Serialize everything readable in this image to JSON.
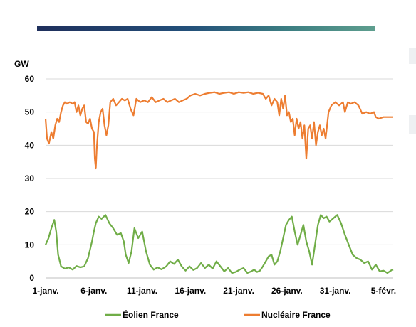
{
  "colors": {
    "eolien": "#70ad47",
    "nucleaire": "#ed7d31",
    "grid": "#d9d9d9",
    "accent_bar": "#23507a"
  },
  "chart_data": {
    "type": "line",
    "title": "",
    "xlabel": "",
    "ylabel": "GW",
    "xlim": [
      0,
      36
    ],
    "ylim": [
      0,
      60
    ],
    "yticks": [
      0,
      10,
      20,
      30,
      40,
      50,
      60
    ],
    "ytick_labels": [
      "0",
      "10",
      "20",
      "30",
      "40",
      "50",
      "60"
    ],
    "xticks": [
      0,
      5,
      10,
      15,
      20,
      25,
      30,
      35
    ],
    "xtick_labels": [
      "1-janv.",
      "6-janv.",
      "11-janv.",
      "16-janv.",
      "21-janv.",
      "26-janv.",
      "31-janv.",
      "5-févr."
    ],
    "grid": "horizontal",
    "legend_position": "bottom",
    "series": [
      {
        "name": "Éolien France",
        "color": "#70ad47",
        "x": [
          0,
          0.3,
          0.6,
          0.9,
          1.1,
          1.3,
          1.6,
          2.0,
          2.4,
          2.8,
          3.2,
          3.6,
          4.0,
          4.4,
          4.8,
          5.0,
          5.2,
          5.5,
          5.8,
          6.2,
          6.6,
          7.0,
          7.4,
          7.8,
          8.1,
          8.3,
          8.6,
          8.9,
          9.2,
          9.6,
          10.0,
          10.4,
          10.8,
          11.2,
          11.6,
          12.0,
          12.5,
          12.9,
          13.3,
          13.7,
          14.1,
          14.5,
          14.9,
          15.3,
          15.7,
          16.1,
          16.5,
          16.9,
          17.3,
          17.7,
          18.1,
          18.5,
          18.9,
          19.3,
          19.7,
          20.1,
          20.5,
          20.9,
          21.3,
          21.6,
          21.9,
          22.2,
          22.5,
          22.8,
          23.1,
          23.4,
          23.7,
          24.0,
          24.3,
          24.6,
          24.9,
          25.2,
          25.5,
          25.8,
          26.1,
          26.4,
          26.7,
          27.0,
          27.3,
          27.6,
          27.9,
          28.2,
          28.5,
          28.8,
          29.1,
          29.4,
          29.8,
          30.2,
          30.6,
          31.0,
          31.4,
          31.8,
          32.2,
          32.6,
          33.0,
          33.4,
          33.8,
          34.2,
          34.6,
          35.0,
          35.4,
          35.8,
          36.0
        ],
        "y": [
          10,
          12,
          15,
          17.5,
          14,
          7,
          3.5,
          2.8,
          3.2,
          2.5,
          3.6,
          3.2,
          3.5,
          6,
          11,
          14,
          16.5,
          18.5,
          17.8,
          19,
          16.5,
          15,
          13,
          13.5,
          11,
          7,
          4.5,
          8,
          15,
          12,
          14,
          8,
          4,
          2.5,
          3.2,
          2.6,
          3.5,
          5,
          4.2,
          5.5,
          3.5,
          2.2,
          3.5,
          2.4,
          3,
          4.5,
          3,
          4,
          2.8,
          5,
          3.5,
          2,
          3,
          1.5,
          1.8,
          2.5,
          3,
          1.5,
          2,
          2.5,
          1.8,
          2.2,
          3.5,
          5,
          6.5,
          7,
          4,
          5,
          8,
          12,
          16,
          17.5,
          18.5,
          14,
          10,
          13,
          16,
          11,
          8,
          4,
          10,
          16,
          19,
          18,
          18.5,
          17,
          18,
          19,
          16.5,
          13,
          10,
          7,
          6,
          5.5,
          4.5,
          5,
          2.5,
          4,
          2,
          2.2,
          1.5,
          2.3,
          2.5
        ]
      },
      {
        "name": "Nucléaire France",
        "color": "#ed7d31",
        "x": [
          0,
          0.15,
          0.35,
          0.6,
          0.8,
          1.0,
          1.2,
          1.4,
          1.6,
          1.8,
          2.0,
          2.2,
          2.5,
          2.8,
          3.0,
          3.2,
          3.4,
          3.6,
          3.8,
          4.0,
          4.2,
          4.4,
          4.6,
          4.8,
          5.0,
          5.1,
          5.2,
          5.3,
          5.5,
          5.7,
          5.9,
          6.1,
          6.3,
          6.5,
          6.7,
          7.0,
          7.3,
          7.6,
          7.9,
          8.2,
          8.5,
          8.8,
          9.1,
          9.4,
          9.8,
          10.2,
          10.6,
          11.0,
          11.4,
          11.8,
          12.2,
          12.6,
          13.0,
          13.4,
          13.8,
          14.2,
          14.6,
          15.0,
          15.5,
          16.0,
          16.5,
          17.0,
          17.5,
          18.0,
          18.5,
          19.0,
          19.5,
          20.0,
          20.5,
          21.0,
          21.5,
          22.0,
          22.5,
          22.8,
          23.1,
          23.4,
          23.7,
          24.0,
          24.2,
          24.4,
          24.6,
          24.8,
          25.0,
          25.2,
          25.4,
          25.6,
          25.8,
          26.0,
          26.2,
          26.4,
          26.6,
          26.8,
          27.0,
          27.2,
          27.4,
          27.6,
          27.8,
          28.0,
          28.2,
          28.4,
          28.6,
          28.8,
          29.0,
          29.3,
          29.6,
          30.0,
          30.4,
          30.8,
          31.0,
          31.3,
          31.6,
          32.0,
          32.4,
          32.8,
          33.2,
          33.6,
          34.0,
          34.2,
          34.5,
          35.0,
          35.5,
          36.0
        ],
        "y": [
          48,
          42,
          40.5,
          44,
          42,
          46,
          48,
          47,
          50,
          52,
          53,
          52.5,
          53,
          52.5,
          53,
          50,
          52,
          49,
          51,
          52,
          47,
          46.5,
          48,
          45,
          44,
          36,
          33,
          39,
          47,
          50,
          51,
          46,
          43,
          46,
          53,
          54,
          52,
          53,
          54,
          53.5,
          54,
          51,
          49,
          54,
          53,
          53.5,
          53,
          54.5,
          53,
          53.5,
          54,
          53,
          53.5,
          54,
          53,
          53.5,
          54,
          55,
          55.5,
          55,
          55.5,
          55.8,
          56,
          55.5,
          55.8,
          56,
          55.5,
          56,
          55.8,
          56,
          55.5,
          55.8,
          55.5,
          54,
          55,
          52,
          54,
          53,
          49,
          54,
          51,
          55,
          49,
          50,
          47,
          48,
          43,
          48,
          45,
          47,
          42,
          46,
          36,
          45,
          46,
          42,
          47,
          40,
          44,
          46,
          43,
          45,
          42,
          50,
          52,
          53,
          52,
          53,
          50,
          53,
          52.5,
          53,
          52,
          49.5,
          50,
          49.5,
          50,
          48.5,
          48,
          48.5,
          48.5,
          48.5
        ]
      }
    ]
  }
}
